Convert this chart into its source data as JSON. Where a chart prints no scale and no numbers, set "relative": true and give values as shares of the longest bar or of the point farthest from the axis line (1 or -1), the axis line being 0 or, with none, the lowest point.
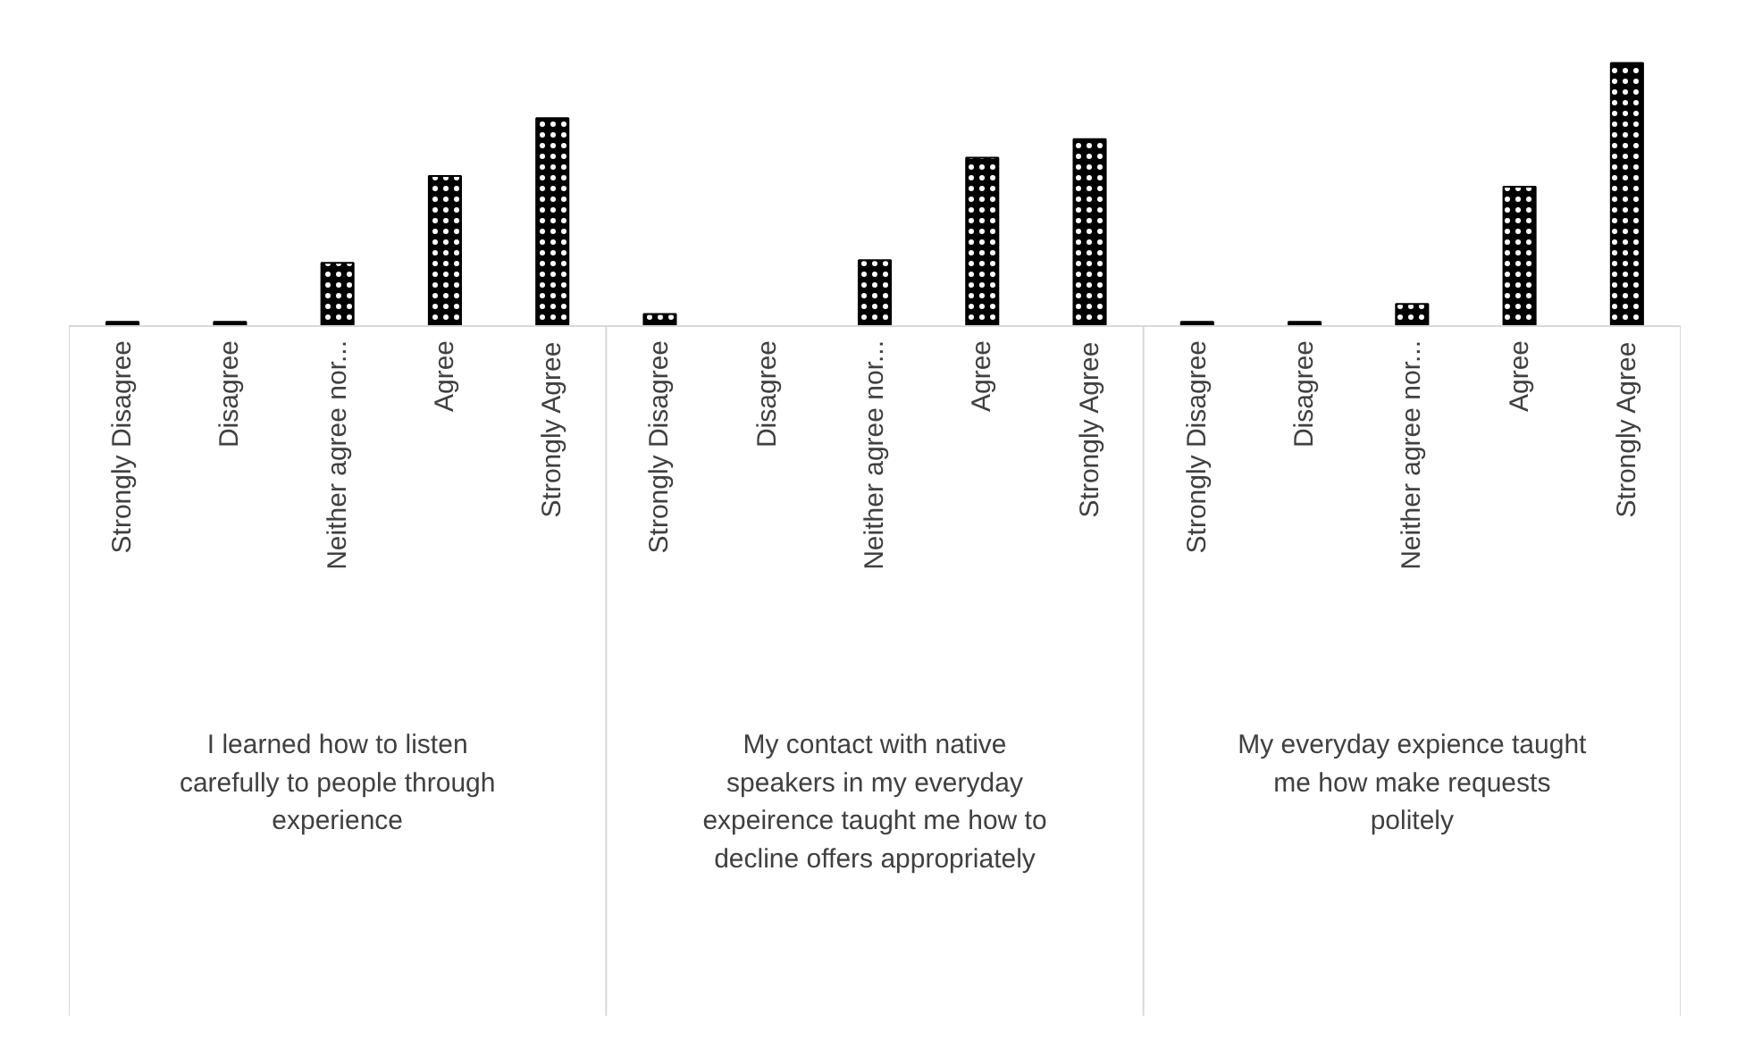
{
  "chart_data": {
    "type": "bar",
    "relative": true,
    "color": "#000000",
    "categories": [
      "Strongly Disagree",
      "Disagree",
      "Neither agree nor...",
      "Agree",
      "Strongly Agree",
      "Strongly Disagree",
      "Disagree",
      "Neither agree nor...",
      "Agree",
      "Strongly Agree",
      "Strongly Disagree",
      "Disagree",
      "Neither agree nor...",
      "Agree",
      "Strongly Agree"
    ],
    "values": [
      0.016,
      0.016,
      0.24,
      0.57,
      0.79,
      0.046,
      0,
      0.25,
      0.64,
      0.71,
      0.016,
      0.016,
      0.084,
      0.53,
      1
    ],
    "annotations": [
      "I learned how to listen carefully to people through experience",
      "My contact with native speakers in my everyday expeirence taught me how to decline offers appropriately",
      "My everyday expience taught me how make requests politely"
    ]
  }
}
